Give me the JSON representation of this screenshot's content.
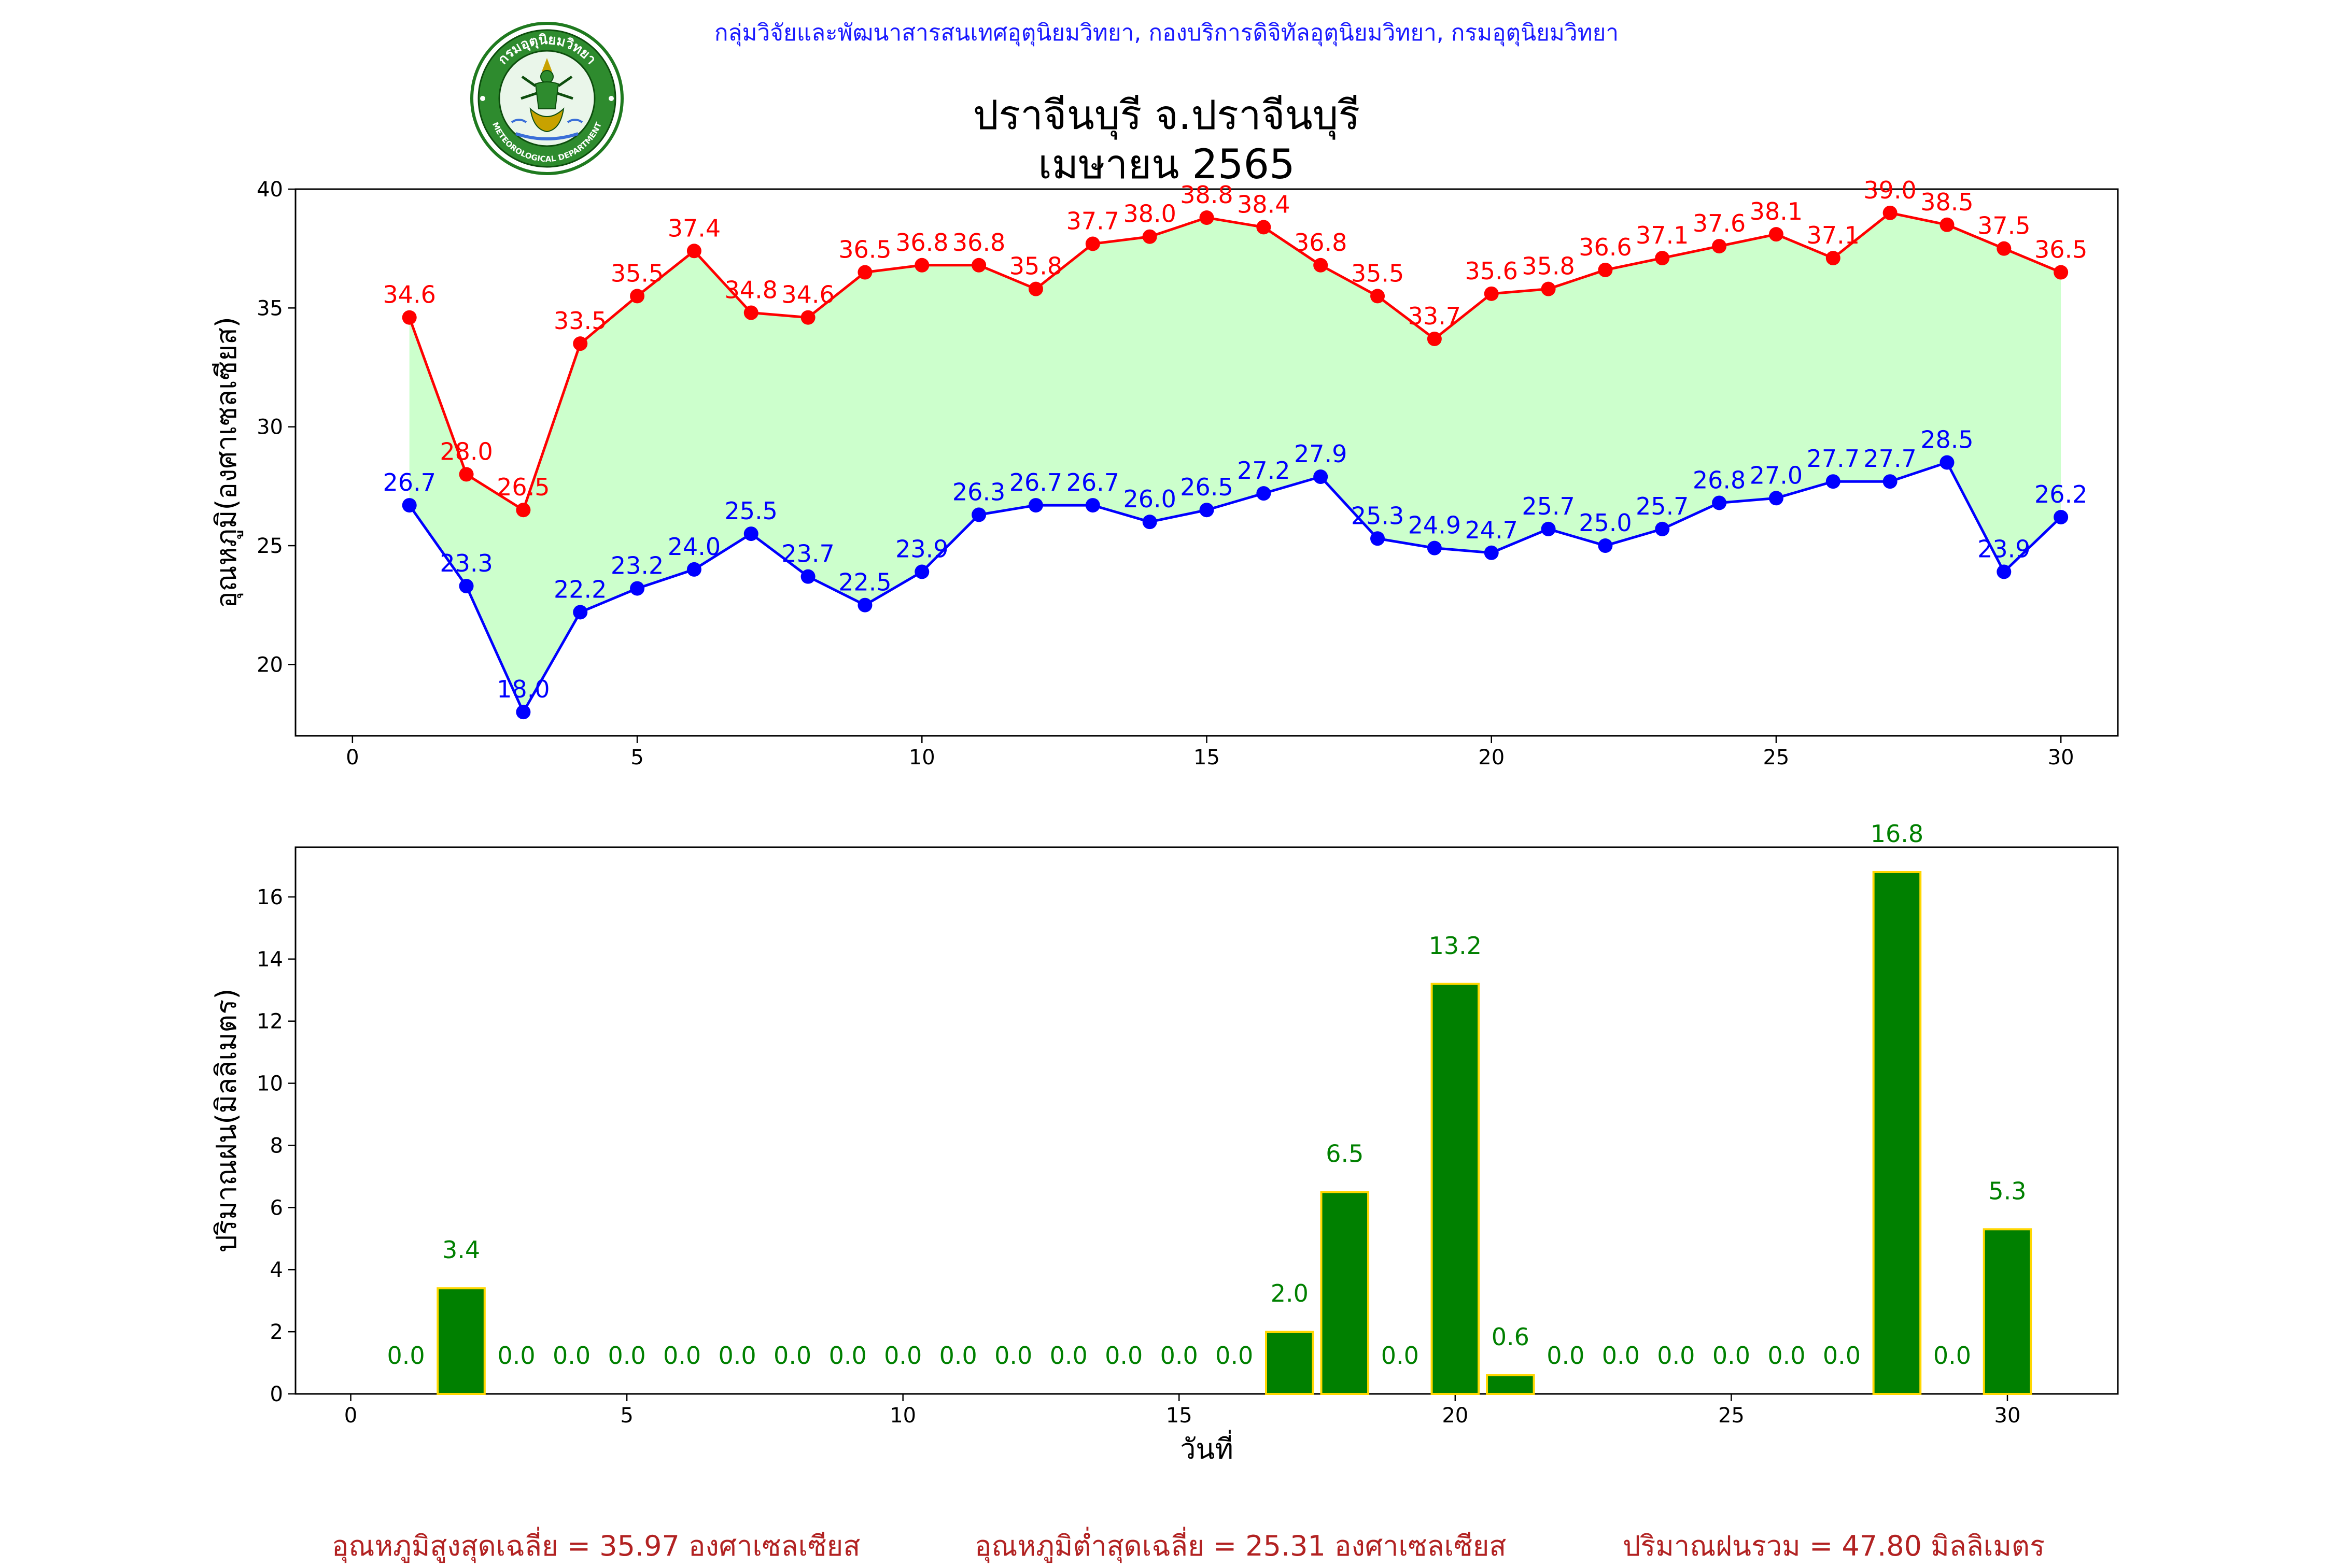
{
  "header": {
    "agency": "กลุ่มวิจัยและพัฒนาสารสนเทศอุตุนิยมวิทยา, กองบริการดิจิทัลอุตุนิยมวิทยา, กรมอุตุนิยมวิทยา",
    "title_line1": "ปราจีนบุรี จ.ปราจีนบุรี",
    "title_line2": "เมษายน 2565",
    "logo": {
      "icon": "meteorological-department-seal",
      "top_text": "กรมอุตุนิยมวิทยา",
      "bottom_text": "METEOROLOGICAL DEPARTMENT"
    }
  },
  "chart_data": [
    {
      "type": "line",
      "ylabel": "อุณหภูมิ(องศาเซลเซียส)",
      "xlabel": "",
      "xlim": [
        -1,
        31
      ],
      "ylim": [
        17,
        40
      ],
      "xticks": [
        0,
        5,
        10,
        15,
        20,
        25,
        30
      ],
      "yticks": [
        20,
        25,
        30,
        35,
        40
      ],
      "grid": false,
      "fill_between_color": "#ccffcc",
      "x": [
        1,
        2,
        3,
        4,
        5,
        6,
        7,
        8,
        9,
        10,
        11,
        12,
        13,
        14,
        15,
        16,
        17,
        18,
        19,
        20,
        21,
        22,
        23,
        24,
        25,
        26,
        27,
        28,
        29,
        30
      ],
      "series": [
        {
          "color": "#ff0000",
          "values": [
            34.6,
            28.0,
            26.5,
            33.5,
            35.5,
            37.4,
            34.8,
            34.6,
            36.5,
            36.8,
            36.8,
            35.8,
            37.7,
            38.0,
            38.8,
            38.4,
            36.8,
            35.5,
            33.7,
            35.6,
            35.8,
            36.6,
            37.1,
            37.6,
            38.1,
            37.1,
            39.0,
            38.5,
            37.5,
            36.5
          ]
        },
        {
          "color": "#0000ff",
          "values": [
            26.7,
            23.3,
            18.0,
            22.2,
            23.2,
            24.0,
            25.5,
            23.7,
            22.5,
            23.9,
            26.3,
            26.7,
            26.7,
            26.0,
            26.5,
            27.2,
            27.9,
            25.3,
            24.9,
            24.7,
            25.7,
            25.0,
            25.7,
            26.8,
            27.0,
            27.7,
            27.7,
            28.5,
            23.9,
            26.2
          ]
        }
      ]
    },
    {
      "type": "bar",
      "ylabel": "ปริมาณฝน(มิลลิเมตร)",
      "xlabel": "วันที่",
      "xlim": [
        -1,
        32
      ],
      "ylim": [
        0,
        17.6
      ],
      "xticks": [
        0,
        5,
        10,
        15,
        20,
        25,
        30
      ],
      "yticks": [
        0,
        2,
        4,
        6,
        8,
        10,
        12,
        14,
        16
      ],
      "grid": false,
      "bar_color": "#008000",
      "bar_edge_color": "#ffd700",
      "label_color": "#008000",
      "x": [
        1,
        2,
        3,
        4,
        5,
        6,
        7,
        8,
        9,
        10,
        11,
        12,
        13,
        14,
        15,
        16,
        17,
        18,
        19,
        20,
        21,
        22,
        23,
        24,
        25,
        26,
        27,
        28,
        29,
        30
      ],
      "values": [
        0.0,
        3.4,
        0.0,
        0.0,
        0.0,
        0.0,
        0.0,
        0.0,
        0.0,
        0.0,
        0.0,
        0.0,
        0.0,
        0.0,
        0.0,
        0.0,
        2.0,
        6.5,
        0.0,
        13.2,
        0.6,
        0.0,
        0.0,
        0.0,
        0.0,
        0.0,
        0.0,
        16.8,
        0.0,
        5.3
      ]
    }
  ],
  "footer": {
    "avg_max": "อุณหภูมิสูงสุดเฉลี่ย = 35.97 องศาเซลเซียส",
    "avg_min": "อุณหภูมิต่ำสุดเฉลี่ย = 25.31 องศาเซลเซียส",
    "total_rain": "ปริมาณฝนรวม = 47.80 มิลลิเมตร"
  }
}
